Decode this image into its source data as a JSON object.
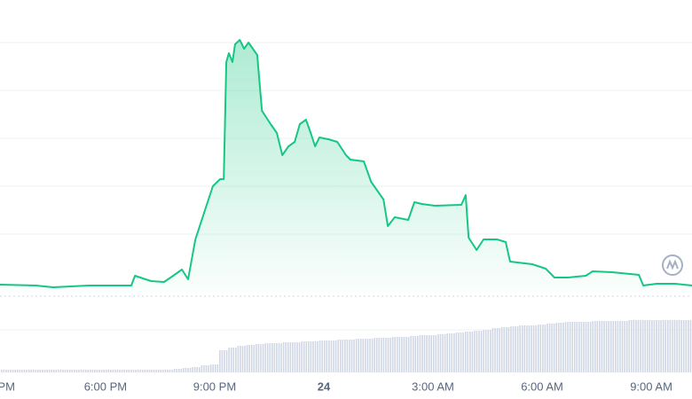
{
  "chart_data": {
    "type": "line",
    "xlim": [
      15.1,
      34.12
    ],
    "ylim": [
      0,
      300
    ],
    "y2lim": [
      0,
      80
    ],
    "xticks": [
      {
        "value": 15,
        "label": "PM"
      },
      {
        "value": 18,
        "label": "6:00 PM"
      },
      {
        "value": 21,
        "label": "9:00 PM"
      },
      {
        "value": 24,
        "label": "24"
      },
      {
        "value": 27,
        "label": "3:00 AM"
      },
      {
        "value": 30,
        "label": "6:00 AM"
      },
      {
        "value": 33,
        "label": "9:00 AM"
      }
    ],
    "series": [
      {
        "color": "#16c784",
        "x": [
          15.1,
          16.08,
          16.56,
          17.54,
          18.71,
          18.81,
          19.25,
          19.61,
          19.86,
          20.1,
          20.27,
          20.47,
          20.71,
          20.95,
          21.15,
          21.25,
          21.32,
          21.39,
          21.49,
          21.56,
          21.69,
          21.81,
          21.93,
          22.05,
          22.17,
          22.3,
          22.54,
          22.71,
          22.86,
          23.03,
          23.2,
          23.34,
          23.51,
          23.64,
          23.76,
          23.88,
          24.12,
          24.37,
          24.61,
          24.73,
          25.1,
          25.3,
          25.47,
          25.64,
          25.76,
          25.95,
          26.32,
          26.49,
          26.69,
          27.05,
          27.78,
          27.9,
          27.98,
          28.2,
          28.39,
          28.76,
          29.0,
          29.12,
          29.73,
          30.1,
          30.34,
          30.71,
          31.2,
          31.39,
          31.93,
          32.66,
          32.78,
          33.15,
          33.64,
          34.12
        ],
        "values": [
          9,
          8,
          6,
          8,
          8,
          19,
          13,
          12,
          19,
          26,
          15,
          60,
          90,
          120,
          128,
          128,
          260,
          270,
          260,
          280,
          285,
          275,
          282,
          275,
          268,
          205,
          190,
          180,
          155,
          165,
          170,
          190,
          195,
          180,
          165,
          175,
          173,
          170,
          155,
          150,
          148,
          125,
          115,
          105,
          75,
          85,
          82,
          102,
          100,
          98,
          99,
          110,
          62,
          48,
          60,
          60,
          57,
          35,
          32,
          27,
          17,
          17,
          19,
          24,
          23,
          20,
          8,
          10,
          10,
          8
        ]
      },
      {
        "type": "bar",
        "axis": "y2",
        "color": "#cfd6e4",
        "x": [
          15.25,
          15.5,
          15.75,
          16,
          16.25,
          16.5,
          16.75,
          17,
          17.25,
          17.5,
          17.75,
          18,
          18.25,
          18.5,
          18.75,
          19,
          19.25,
          19.5,
          19.75,
          20,
          20.25,
          20.5,
          20.75,
          21,
          21.25,
          21.5,
          21.75,
          22,
          22.25,
          22.5,
          22.75,
          23,
          23.25,
          23.5,
          23.75,
          24,
          24.25,
          24.5,
          24.75,
          25,
          25.25,
          25.5,
          25.75,
          26,
          26.25,
          26.5,
          26.75,
          27,
          27.25,
          27.5,
          27.75,
          28,
          28.25,
          28.5,
          28.75,
          29,
          29.25,
          29.5,
          29.75,
          30,
          30.25,
          30.5,
          30.75,
          31,
          31.25,
          31.5,
          31.75,
          32,
          32.25,
          32.5,
          32.75,
          33,
          33.25,
          33.5,
          33.75,
          34
        ],
        "values": [
          3,
          3,
          3,
          3,
          3,
          3,
          3,
          3,
          3,
          3,
          3,
          3,
          3,
          3,
          3,
          3,
          3,
          3,
          3,
          4,
          5,
          6,
          8,
          9,
          25,
          28,
          30,
          31,
          32,
          33,
          33,
          34,
          34,
          35,
          35,
          36,
          36,
          37,
          37,
          38,
          38,
          39,
          39,
          40,
          40,
          41,
          42,
          42,
          43,
          44,
          45,
          46,
          47,
          48,
          50,
          51,
          52,
          53,
          53,
          54,
          55,
          56,
          57,
          57,
          57,
          58,
          58,
          58,
          58,
          59,
          59,
          59,
          59,
          59,
          59,
          59
        ]
      }
    ]
  }
}
